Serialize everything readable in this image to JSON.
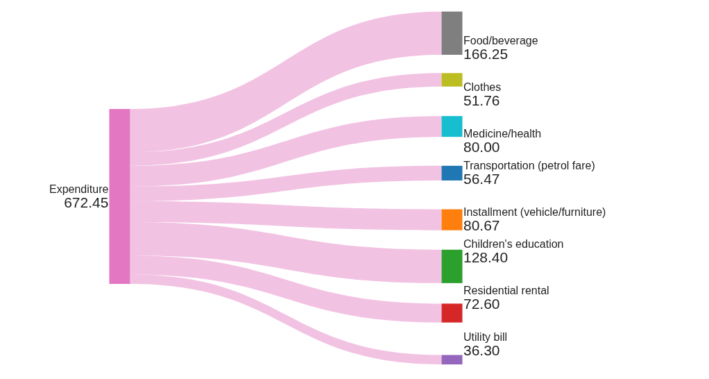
{
  "chart_data": {
    "type": "other",
    "categories": [
      "Expenditure",
      "Food/beverage",
      "Clothes",
      "Medicine/health",
      "Transportation (petrol fare)",
      "Installment (vehicle/furniture)",
      "Children's education",
      "Residential rental",
      "Utility bill"
    ],
    "values": [
      672.45,
      166.25,
      51.76,
      80.0,
      56.47,
      80.67,
      128.4,
      72.6,
      36.3
    ],
    "value_labels": [
      "672.45",
      "166.25",
      "51.76",
      "80.00",
      "56.47",
      "80.67",
      "128.40",
      "72.60",
      "36.30"
    ],
    "colors": [
      "#e377c2",
      "#7f7f7f",
      "#bcbd22",
      "#17becf",
      "#1f77b4",
      "#ff7f0e",
      "#2ca02c",
      "#d62728",
      "#9467bd"
    ]
  }
}
